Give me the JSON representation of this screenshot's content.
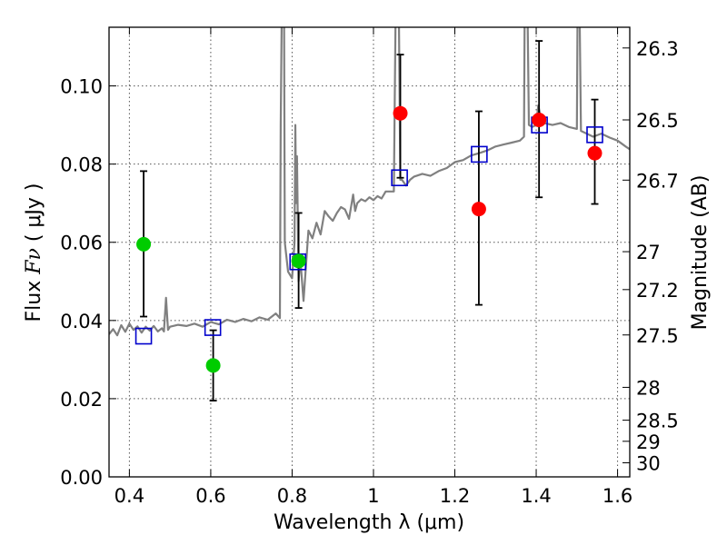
{
  "chart_data": {
    "type": "scatter",
    "xlabel": "Wavelength  λ (μm)",
    "ylabel_prefix": "Flux  ",
    "ylabel_symbol": "Fν",
    "ylabel_suffix": "  ( μJy )",
    "ylabel_right": "Magnitude (AB)",
    "xlim": [
      0.35,
      1.63
    ],
    "ylim": [
      0.0,
      0.115
    ],
    "grid": true,
    "x_ticks": [
      0.4,
      0.6,
      0.8,
      1.0,
      1.2,
      1.4,
      1.6
    ],
    "x_tick_labels": [
      "0.4",
      "0.6",
      "0.8",
      "1",
      "1.2",
      "1.4",
      "1.6"
    ],
    "y_ticks": [
      0.0,
      0.02,
      0.04,
      0.06,
      0.08,
      0.1
    ],
    "y_tick_labels": [
      "0.00",
      "0.02",
      "0.04",
      "0.06",
      "0.08",
      "0.10"
    ],
    "right_ticks": [
      {
        "label": "26.3",
        "flux": 0.1097
      },
      {
        "label": "26.5",
        "flux": 0.0913
      },
      {
        "label": "26.7",
        "flux": 0.0759
      },
      {
        "label": "27",
        "flux": 0.0576
      },
      {
        "label": "27.2",
        "flux": 0.0479
      },
      {
        "label": "27.5",
        "flux": 0.0363
      },
      {
        "label": "28",
        "flux": 0.0229
      },
      {
        "label": "28.5",
        "flux": 0.0145
      },
      {
        "label": "29",
        "flux": 0.0091
      },
      {
        "label": "30",
        "flux": 0.0036
      }
    ],
    "series": [
      {
        "role": "model-spectrum",
        "color": "#808080",
        "points": [
          [
            0.35,
            0.0365
          ],
          [
            0.36,
            0.0378
          ],
          [
            0.37,
            0.0362
          ],
          [
            0.38,
            0.0388
          ],
          [
            0.39,
            0.0371
          ],
          [
            0.4,
            0.0392
          ],
          [
            0.41,
            0.0376
          ],
          [
            0.42,
            0.0385
          ],
          [
            0.43,
            0.0369
          ],
          [
            0.44,
            0.0384
          ],
          [
            0.45,
            0.0374
          ],
          [
            0.46,
            0.0386
          ],
          [
            0.47,
            0.0372
          ],
          [
            0.48,
            0.038
          ],
          [
            0.485,
            0.0372
          ],
          [
            0.49,
            0.0458
          ],
          [
            0.495,
            0.0376
          ],
          [
            0.5,
            0.0384
          ],
          [
            0.52,
            0.0389
          ],
          [
            0.54,
            0.0386
          ],
          [
            0.56,
            0.0392
          ],
          [
            0.58,
            0.0384
          ],
          [
            0.6,
            0.0396
          ],
          [
            0.62,
            0.039
          ],
          [
            0.64,
            0.0402
          ],
          [
            0.66,
            0.0396
          ],
          [
            0.68,
            0.0404
          ],
          [
            0.7,
            0.0398
          ],
          [
            0.72,
            0.0408
          ],
          [
            0.74,
            0.0402
          ],
          [
            0.76,
            0.0418
          ],
          [
            0.77,
            0.0406
          ],
          [
            0.772,
            0.09
          ],
          [
            0.775,
            0.125
          ],
          [
            0.78,
            0.125
          ],
          [
            0.782,
            0.06
          ],
          [
            0.79,
            0.0525
          ],
          [
            0.8,
            0.0508
          ],
          [
            0.806,
            0.06
          ],
          [
            0.808,
            0.09
          ],
          [
            0.81,
            0.07
          ],
          [
            0.812,
            0.082
          ],
          [
            0.816,
            0.05
          ],
          [
            0.82,
            0.056
          ],
          [
            0.828,
            0.045
          ],
          [
            0.834,
            0.054
          ],
          [
            0.84,
            0.063
          ],
          [
            0.85,
            0.061
          ],
          [
            0.86,
            0.065
          ],
          [
            0.87,
            0.062
          ],
          [
            0.88,
            0.068
          ],
          [
            0.89,
            0.0666
          ],
          [
            0.9,
            0.0655
          ],
          [
            0.91,
            0.0675
          ],
          [
            0.92,
            0.069
          ],
          [
            0.93,
            0.0684
          ],
          [
            0.94,
            0.066
          ],
          [
            0.95,
            0.0722
          ],
          [
            0.955,
            0.068
          ],
          [
            0.96,
            0.07
          ],
          [
            0.97,
            0.071
          ],
          [
            0.98,
            0.0705
          ],
          [
            0.99,
            0.0715
          ],
          [
            1.0,
            0.0708
          ],
          [
            1.01,
            0.0718
          ],
          [
            1.02,
            0.0712
          ],
          [
            1.03,
            0.073
          ],
          [
            1.04,
            0.073
          ],
          [
            1.05,
            0.073
          ],
          [
            1.055,
            0.125
          ],
          [
            1.062,
            0.125
          ],
          [
            1.066,
            0.076
          ],
          [
            1.07,
            0.076
          ],
          [
            1.08,
            0.0745
          ],
          [
            1.09,
            0.076
          ],
          [
            1.1,
            0.0768
          ],
          [
            1.12,
            0.0775
          ],
          [
            1.14,
            0.077
          ],
          [
            1.16,
            0.0782
          ],
          [
            1.18,
            0.079
          ],
          [
            1.2,
            0.0805
          ],
          [
            1.22,
            0.081
          ],
          [
            1.24,
            0.0822
          ],
          [
            1.26,
            0.0828
          ],
          [
            1.28,
            0.0835
          ],
          [
            1.3,
            0.0845
          ],
          [
            1.32,
            0.085
          ],
          [
            1.34,
            0.0855
          ],
          [
            1.36,
            0.086
          ],
          [
            1.37,
            0.087
          ],
          [
            1.372,
            0.125
          ],
          [
            1.378,
            0.125
          ],
          [
            1.382,
            0.09
          ],
          [
            1.39,
            0.0895
          ],
          [
            1.4,
            0.09
          ],
          [
            1.405,
            0.095
          ],
          [
            1.41,
            0.0925
          ],
          [
            1.42,
            0.0905
          ],
          [
            1.44,
            0.09
          ],
          [
            1.46,
            0.0905
          ],
          [
            1.48,
            0.0895
          ],
          [
            1.5,
            0.089
          ],
          [
            1.502,
            0.125
          ],
          [
            1.506,
            0.125
          ],
          [
            1.51,
            0.0885
          ],
          [
            1.52,
            0.088
          ],
          [
            1.54,
            0.087
          ],
          [
            1.56,
            0.0878
          ],
          [
            1.58,
            0.0868
          ],
          [
            1.6,
            0.086
          ],
          [
            1.62,
            0.0845
          ],
          [
            1.63,
            0.0838
          ]
        ]
      },
      {
        "role": "model-photometry",
        "marker": "square",
        "color": "#0000cc",
        "points": [
          [
            0.435,
            0.036
          ],
          [
            0.605,
            0.0382
          ],
          [
            0.814,
            0.055
          ],
          [
            1.064,
            0.0765
          ],
          [
            1.26,
            0.0825
          ],
          [
            1.408,
            0.09
          ],
          [
            1.544,
            0.0875
          ]
        ]
      },
      {
        "role": "observed-detections",
        "marker": "circle",
        "color": "#ff0000",
        "points": [
          {
            "x": 1.066,
            "y": 0.093,
            "lo": 0.0765,
            "hi": 0.108
          },
          {
            "x": 1.259,
            "y": 0.0685,
            "lo": 0.044,
            "hi": 0.0935
          },
          {
            "x": 1.407,
            "y": 0.0913,
            "lo": 0.0715,
            "hi": 0.1115
          },
          {
            "x": 1.544,
            "y": 0.0828,
            "lo": 0.0698,
            "hi": 0.0965
          }
        ]
      },
      {
        "role": "observed-upper",
        "marker": "circle",
        "color": "#00cc00",
        "points": [
          {
            "x": 0.435,
            "y": 0.0595,
            "lo": 0.041,
            "hi": 0.0782
          },
          {
            "x": 0.606,
            "y": 0.0285,
            "lo": 0.0195,
            "hi": 0.0375
          },
          {
            "x": 0.816,
            "y": 0.0552,
            "lo": 0.0432,
            "hi": 0.0675
          }
        ]
      }
    ]
  }
}
